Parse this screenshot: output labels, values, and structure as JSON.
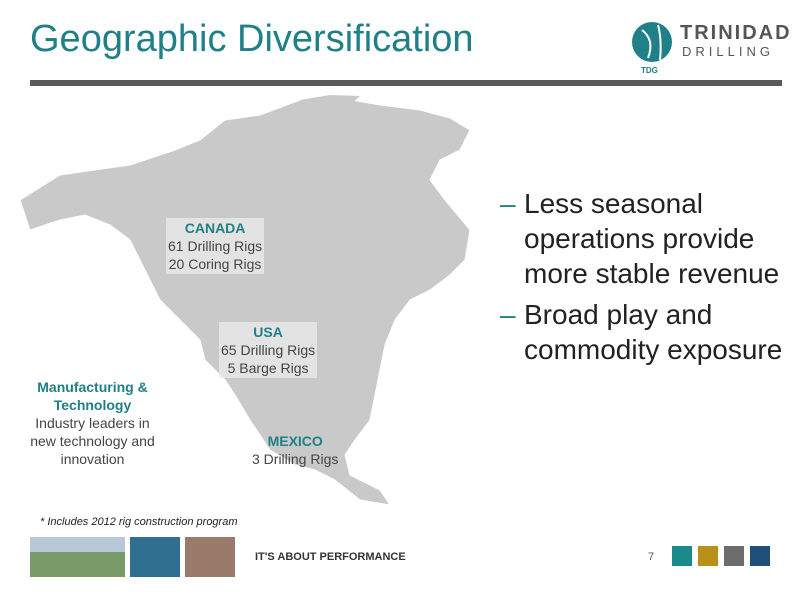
{
  "header": {
    "title": "Geographic Diversification",
    "logo": {
      "name": "TRINIDAD",
      "subname": "DRILLING",
      "mark": "TDG"
    }
  },
  "regions": [
    {
      "name": "CANADA",
      "lines": [
        "61 Drilling Rigs",
        "20 Coring Rigs"
      ]
    },
    {
      "name": "USA",
      "lines": [
        "65 Drilling Rigs",
        "5 Barge Rigs"
      ]
    },
    {
      "name": "MEXICO",
      "lines": [
        "3 Drilling Rigs"
      ]
    }
  ],
  "callout": {
    "title": "Manufacturing & Technology",
    "text": "Industry leaders in new technology and innovation"
  },
  "bullets": [
    "Less seasonal operations provide more stable revenue",
    "Broad play and commodity exposure"
  ],
  "footnote": "* Includes 2012 rig construction program",
  "footer": {
    "tagline": "IT'S ABOUT PERFORMANCE",
    "page": 7
  }
}
